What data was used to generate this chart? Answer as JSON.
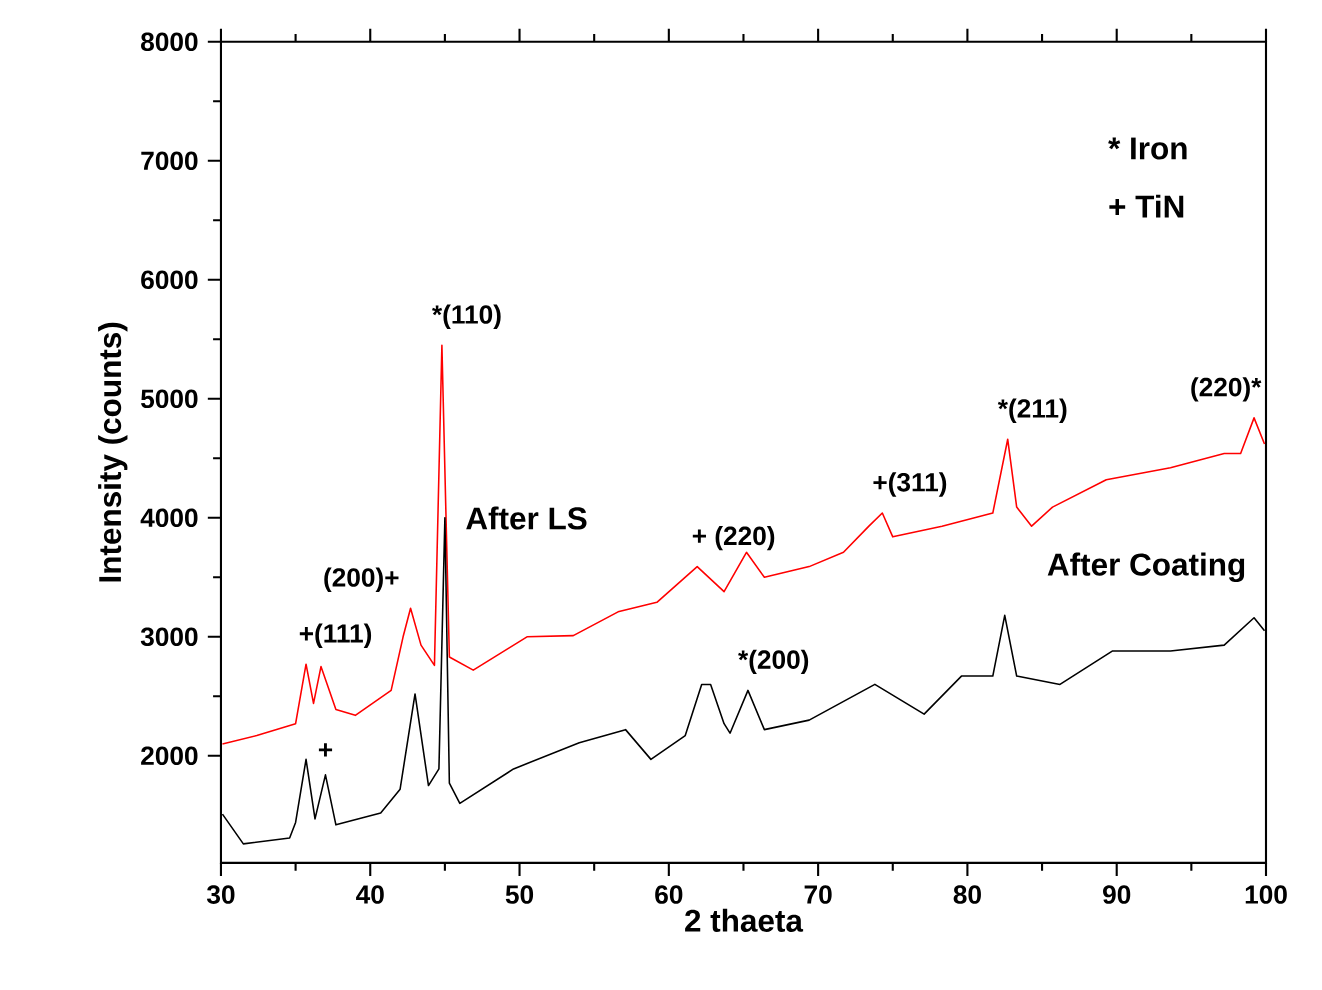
{
  "chart_data": {
    "type": "line",
    "xlabel": "2 thaeta",
    "ylabel": "Intensity (counts)",
    "xlim": [
      30,
      100
    ],
    "ylim": [
      1100,
      8000
    ],
    "xticks": [
      30,
      40,
      50,
      60,
      70,
      80,
      90,
      100
    ],
    "yticks": [
      2000,
      3000,
      4000,
      5000,
      6000,
      7000,
      8000
    ],
    "grid": false,
    "legend": false,
    "marker": "none",
    "line_style": "solid",
    "series": [
      {
        "name": "After LS",
        "color": "#ff0000",
        "x": [
          30.1,
          32.4,
          35.0,
          35.7,
          36.2,
          36.7,
          37.7,
          39.0,
          41.4,
          42.2,
          42.7,
          43.4,
          44.3,
          44.8,
          45.3,
          46.9,
          50.5,
          53.6,
          56.6,
          59.2,
          61.9,
          63.7,
          65.2,
          66.4,
          69.4,
          71.7,
          73.4,
          74.3,
          75.0,
          78.3,
          81.7,
          82.7,
          83.3,
          84.3,
          85.7,
          89.3,
          93.6,
          97.2,
          98.3,
          99.2,
          99.9
        ],
        "values": [
          2100,
          2170,
          2270,
          2770,
          2440,
          2750,
          2390,
          2340,
          2550,
          3000,
          3240,
          2930,
          2760,
          5450,
          2830,
          2720,
          3000,
          3010,
          3210,
          3290,
          3590,
          3380,
          3710,
          3500,
          3590,
          3710,
          3930,
          4040,
          3840,
          3930,
          4040,
          4660,
          4090,
          3930,
          4090,
          4320,
          4420,
          4540,
          4540,
          4840,
          4620
        ]
      },
      {
        "name": "After Coating",
        "color": "#000000",
        "x": [
          30.1,
          31.5,
          34.6,
          35.0,
          35.7,
          36.3,
          37.0,
          37.7,
          40.7,
          42.0,
          43.0,
          43.9,
          44.6,
          45.0,
          45.3,
          46.0,
          49.6,
          54.0,
          57.1,
          58.8,
          61.1,
          62.2,
          62.8,
          63.7,
          64.1,
          65.3,
          66.4,
          69.4,
          73.8,
          77.1,
          79.6,
          81.7,
          82.5,
          83.3,
          86.2,
          89.7,
          93.6,
          97.2,
          99.2,
          99.9
        ],
        "values": [
          1510,
          1260,
          1310,
          1440,
          1970,
          1470,
          1840,
          1420,
          1520,
          1720,
          2520,
          1750,
          1890,
          4000,
          1770,
          1600,
          1890,
          2110,
          2220,
          1970,
          2170,
          2600,
          2600,
          2270,
          2190,
          2550,
          2220,
          2300,
          2600,
          2350,
          2670,
          2670,
          3180,
          2670,
          2600,
          2880,
          2880,
          2930,
          3160,
          3050
        ]
      }
    ],
    "annotations": [
      {
        "text": "+(111)",
        "x": 35.7,
        "y": 2770
      },
      {
        "text": "(200)+",
        "x": 42.7,
        "y": 3240
      },
      {
        "text": "+",
        "x": 37.0,
        "y": 1840
      },
      {
        "text": "*(110)",
        "x": 44.8,
        "y": 5450
      },
      {
        "text": "+ (220)",
        "x": 62.2,
        "y": 3590
      },
      {
        "text": "*(200)",
        "x": 65.3,
        "y": 2550
      },
      {
        "text": "+(311)",
        "x": 74.3,
        "y": 4040
      },
      {
        "text": "*(211)",
        "x": 82.7,
        "y": 4660
      },
      {
        "text": "(220)*",
        "x": 99.2,
        "y": 4840
      },
      "* Iron",
      "+ TiN"
    ]
  }
}
